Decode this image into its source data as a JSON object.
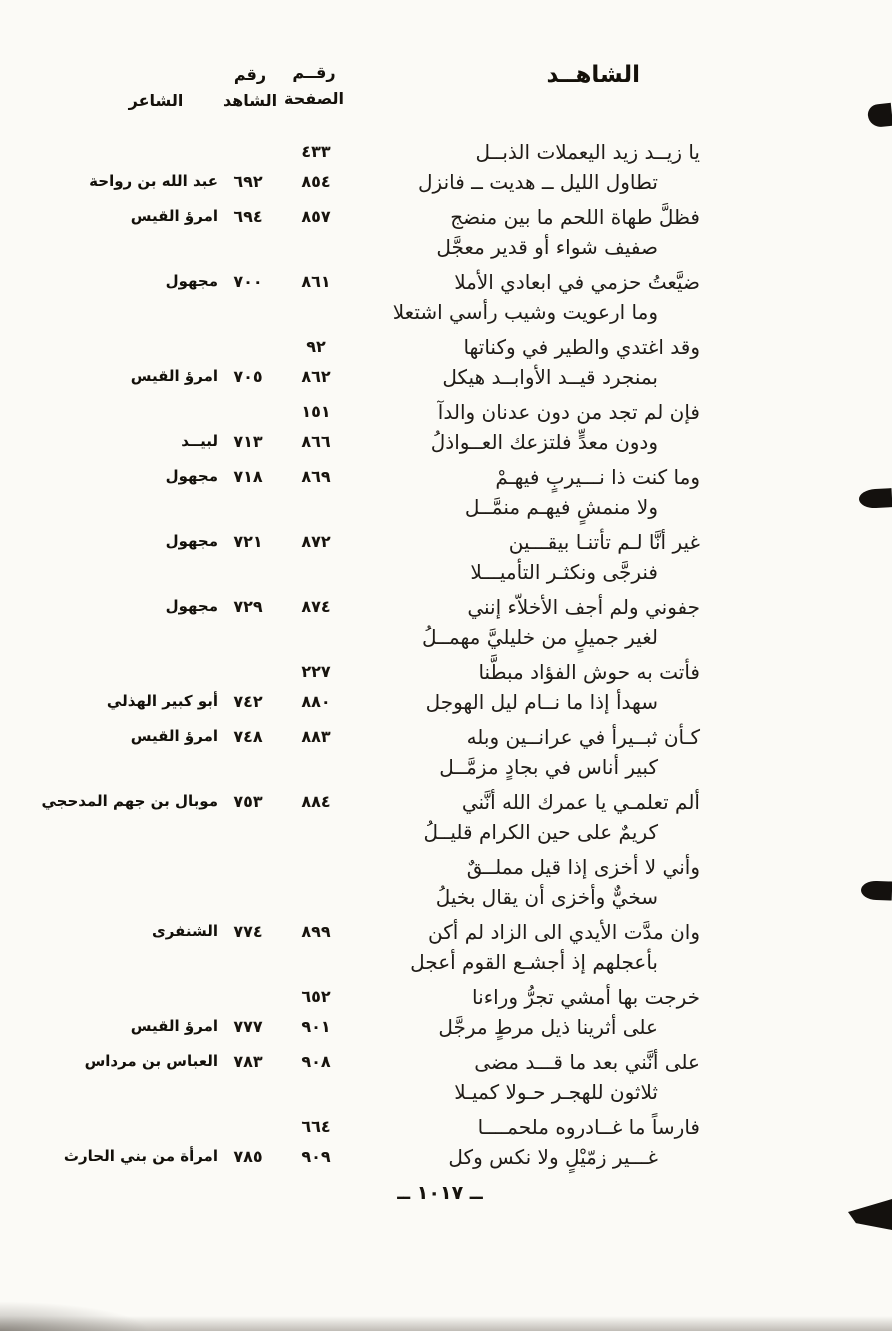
{
  "page": {
    "header_title": "الشاهــد",
    "columns": {
      "page_word": "رقــم",
      "page_word2": "الصفحة",
      "witness_word": "رقم",
      "witness_word2": "الشاهد",
      "poet": "الشاعر"
    },
    "footer_page_number": "ــ ١٠١٧ ــ"
  },
  "entries": [
    {
      "line1": {
        "verse": "يا زيــد زيد اليعملات الذبــل",
        "page": "٤٣٣"
      },
      "line2": {
        "verse": "تطاول الليل ــ هديت ــ فانزل",
        "page": "٨٥٤",
        "witness": "٦٩٢",
        "poet": "عبد الله بن رواحة"
      }
    },
    {
      "line1": {
        "verse": "فظلَّ طهاة اللحم ما بين منضج",
        "page": "٨٥٧",
        "witness": "٦٩٤",
        "poet": "امرؤ القيس"
      },
      "line2": {
        "verse": "صفيف شواء أو قدير معجَّل"
      }
    },
    {
      "line1": {
        "verse": "ضيَّعتُ حزمي في ابعادي الأملا",
        "page": "٨٦١",
        "witness": "٧٠٠",
        "poet": "مجهول"
      },
      "line2": {
        "verse": "وما ارعويت وشيب رأسي اشتعلا"
      }
    },
    {
      "line1": {
        "verse": "وقد اغتدي والطير في وكناتها",
        "page": "٩٢"
      },
      "line2": {
        "verse": "بمنجرد قيــد الأوابــد هيكل",
        "page": "٨٦٢",
        "witness": "٧٠٥",
        "poet": "امرؤ القيس"
      }
    },
    {
      "line1": {
        "verse": "فإن لم تجد من دون عدنان والدآ",
        "page": "١٥١"
      },
      "line2": {
        "verse": "ودون معدٍّ فلتزعك العــواذلُ",
        "page": "٨٦٦",
        "witness": "٧١٣",
        "poet": "لبيــد"
      }
    },
    {
      "line1": {
        "verse": "وما كنت ذا نـــيربٍ فيهـمْ",
        "page": "٨٦٩",
        "witness": "٧١٨",
        "poet": "مجهول"
      },
      "line2": {
        "verse": "ولا منمشٍ فيهـم منمَّــل"
      }
    },
    {
      "line1": {
        "verse": "غير أنَّا لـم تأتنـا بيقـــين",
        "page": "٨٧٢",
        "witness": "٧٢١",
        "poet": "مجهول"
      },
      "line2": {
        "verse": "فنرجَّى ونكثـر التأميـــلا"
      }
    },
    {
      "line1": {
        "verse": "جفوني ولم أجف الأخلاّء إنني",
        "page": "٨٧٤",
        "witness": "٧٢٩",
        "poet": "مجهول"
      },
      "line2": {
        "verse": "لغير جميلٍ من خليليَّ مهمــلُ"
      }
    },
    {
      "line1": {
        "verse": "فأتت به حوش الفؤاد مبطَّنا",
        "page": "٢٢٧"
      },
      "line2": {
        "verse": "سهدأ إذا ما نــام ليل الهوجل",
        "page": "٨٨٠",
        "witness": "٧٤٢",
        "poet": "أبو كبير الهذلي"
      }
    },
    {
      "line1": {
        "verse": "كـأن ثبــيرأ في عرانــين وبله",
        "page": "٨٨٣",
        "witness": "٧٤٨",
        "poet": "امرؤ القيس"
      },
      "line2": {
        "verse": "كبير أناس في بجادٍ مزمَّــل"
      }
    },
    {
      "line1": {
        "verse": "ألم تعلمـي يا عمرك الله أنَّني",
        "page": "٨٨٤",
        "witness": "٧٥٣",
        "poet": "موبال بن جهم المدحجي"
      },
      "line2": {
        "verse": "كريمٌ على حين الكرام قليــلُ"
      }
    },
    {
      "line1": {
        "verse": "وأني لا أخزى إذا قيل مملــقٌ"
      },
      "line2": {
        "verse": "سخيٌّ وأخزى أن يقال بخيلُ"
      }
    },
    {
      "line1": {
        "verse": "وان مدَّت الأيدي الى الزاد لم أكن",
        "page": "٨٩٩",
        "witness": "٧٧٤",
        "poet": "الشنفرى"
      },
      "line2": {
        "verse": "بأعجلهم إذ أجشـع القوم أعجل"
      }
    },
    {
      "line1": {
        "verse": "خرجت بها أمشي تجرُّ وراءنا",
        "page": "٦٥٢"
      },
      "line2": {
        "verse": "على أثرينا ذيل مرطٍ مرجَّل",
        "page": "٩٠١",
        "witness": "٧٧٧",
        "poet": "امرؤ القيس"
      }
    },
    {
      "line1": {
        "verse": "على أنَّني بعد ما قـــد مضى",
        "page": "٩٠٨",
        "witness": "٧٨٣",
        "poet": "العباس بن مرداس"
      },
      "line2": {
        "verse": "ثلاثون للهجـر حـولا كميـلا"
      }
    },
    {
      "line1": {
        "verse": "فارساً ما غــادروه ملحمــــا",
        "page": "٦٦٤"
      },
      "line2": {
        "verse": "غـــير زمّيْلٍ ولا نكس وكل",
        "page": "٩٠٩",
        "witness": "٧٨٥",
        "poet": "امرأة من بني الحارث"
      }
    }
  ]
}
